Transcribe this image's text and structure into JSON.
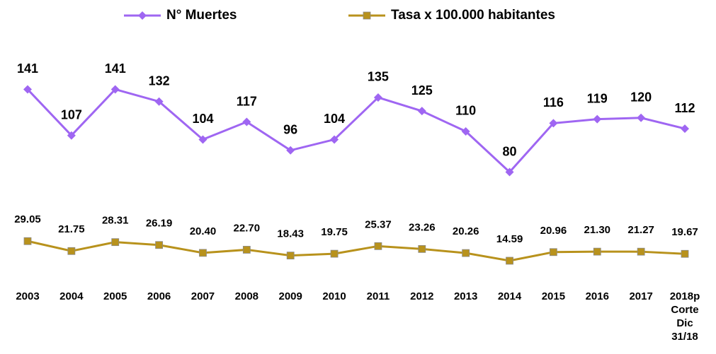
{
  "chart_data": {
    "type": "line",
    "categories": [
      "2003",
      "2004",
      "2005",
      "2006",
      "2007",
      "2008",
      "2009",
      "2010",
      "2011",
      "2012",
      "2013",
      "2014",
      "2015",
      "2016",
      "2017",
      "2018p\nCorte\nDic\n31/18"
    ],
    "series": [
      {
        "name": "N° Muertes",
        "color": "#9f66f2",
        "marker": "diamond",
        "values": [
          141,
          107,
          141,
          132,
          104,
          117,
          96,
          104,
          135,
          125,
          110,
          80,
          116,
          119,
          120,
          112
        ]
      },
      {
        "name": "Tasa x 100.000 habitantes",
        "color": "#b8921c",
        "marker": "square",
        "values": [
          29.05,
          21.75,
          28.31,
          26.19,
          20.4,
          22.7,
          18.43,
          19.75,
          25.37,
          23.26,
          20.26,
          14.59,
          20.96,
          21.3,
          21.27,
          19.67
        ],
        "value_labels": [
          "29.05",
          "21.75",
          "28.31",
          "26.19",
          "20.40",
          "22.70",
          "18.43",
          "19.75",
          "25.37",
          "23.26",
          "20.26",
          "14.59",
          "20.96",
          "21.30",
          "21.27",
          "19.67"
        ]
      }
    ],
    "ylim": [
      0,
      160
    ],
    "grid": false,
    "legend": "top"
  }
}
